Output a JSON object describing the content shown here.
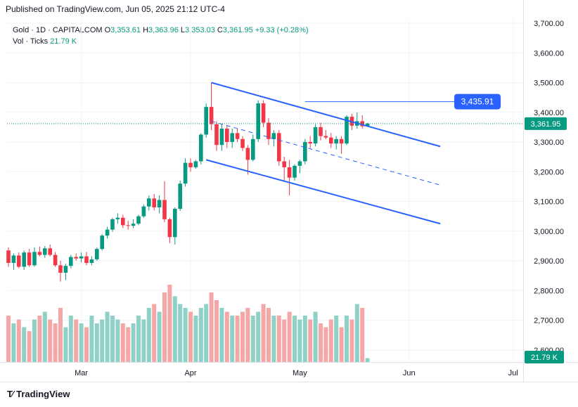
{
  "header": {
    "published": "Published on TradingView.com, Jun 05, 2025 21:12 UTC-4"
  },
  "legend": {
    "symbol": "Gold · 1D · CAPITALCOM",
    "o_label": "O",
    "o": "3,353.61",
    "h_label": "H",
    "h": "3,363.96",
    "l_label": "L",
    "l": "3,353.03",
    "c_label": "C",
    "c": "3,361.95",
    "change": "+9.33 (+0.28%)",
    "vol_label": "Vol · Ticks",
    "vol": "21.79 K"
  },
  "badges": {
    "target": "3,435.91",
    "last_price": "3,361.95",
    "volume": "21.79 K"
  },
  "footer": {
    "brand": "TradingView"
  },
  "colors": {
    "up": "#089981",
    "down": "#f23645",
    "vol_up": "#8fd1c6",
    "vol_down": "#f5a6a6",
    "line": "#2962ff",
    "grid": "#f0f3fa"
  },
  "chart_data": {
    "type": "candlestick",
    "title": "Gold · 1D · CAPITALCOM",
    "y_ticks": [
      "3,700.00",
      "3,600.00",
      "3,500.00",
      "3,400.00",
      "3,300.00",
      "3,200.00",
      "3,100.00",
      "3,000.00",
      "2,900.00",
      "2,800.00",
      "2,700.00",
      "2,600.00"
    ],
    "y_tick_values": [
      3700,
      3600,
      3500,
      3400,
      3300,
      3200,
      3100,
      3000,
      2900,
      2800,
      2700,
      2600
    ],
    "x_ticks": [
      {
        "label": "Mar",
        "index": 14
      },
      {
        "label": "Apr",
        "index": 35
      },
      {
        "label": "May",
        "index": 56
      },
      {
        "label": "Jun",
        "index": 77
      },
      {
        "label": "Jul",
        "index": 97
      }
    ],
    "ylim": [
      2560,
      3740
    ],
    "candles": [
      [
        2935,
        2945,
        2880,
        2893,
        12
      ],
      [
        2893,
        2925,
        2870,
        2918,
        10
      ],
      [
        2918,
        2928,
        2875,
        2880,
        11
      ],
      [
        2880,
        2935,
        2870,
        2928,
        9
      ],
      [
        2928,
        2940,
        2880,
        2885,
        8
      ],
      [
        2885,
        2945,
        2880,
        2930,
        11
      ],
      [
        2930,
        2948,
        2915,
        2920,
        12
      ],
      [
        2920,
        2950,
        2910,
        2942,
        13
      ],
      [
        2942,
        2955,
        2915,
        2920,
        11
      ],
      [
        2920,
        2930,
        2880,
        2885,
        10
      ],
      [
        2885,
        2900,
        2830,
        2860,
        14
      ],
      [
        2860,
        2890,
        2835,
        2883,
        9
      ],
      [
        2883,
        2920,
        2875,
        2913,
        12
      ],
      [
        2913,
        2925,
        2900,
        2908,
        11
      ],
      [
        2908,
        2928,
        2895,
        2915,
        10
      ],
      [
        2915,
        2930,
        2885,
        2893,
        9
      ],
      [
        2893,
        2915,
        2885,
        2905,
        12
      ],
      [
        2905,
        2945,
        2900,
        2940,
        10
      ],
      [
        2940,
        2990,
        2935,
        2985,
        11
      ],
      [
        2985,
        3015,
        2975,
        3005,
        13
      ],
      [
        3005,
        3045,
        2998,
        3040,
        12
      ],
      [
        3040,
        3060,
        3025,
        3045,
        11
      ],
      [
        3045,
        3055,
        3010,
        3020,
        10
      ],
      [
        3020,
        3035,
        3005,
        3018,
        9
      ],
      [
        3018,
        3040,
        3010,
        3025,
        10
      ],
      [
        3025,
        3055,
        3020,
        3050,
        12
      ],
      [
        3050,
        3090,
        3045,
        3083,
        11
      ],
      [
        3083,
        3120,
        3070,
        3110,
        14
      ],
      [
        3110,
        3125,
        3070,
        3080,
        15
      ],
      [
        3080,
        3120,
        3060,
        3105,
        13
      ],
      [
        3105,
        3168,
        3030,
        3040,
        18
      ],
      [
        3040,
        3045,
        2960,
        2980,
        20
      ],
      [
        2980,
        3080,
        2955,
        3075,
        17
      ],
      [
        3075,
        3170,
        3068,
        3160,
        15
      ],
      [
        3160,
        3245,
        3150,
        3230,
        14
      ],
      [
        3230,
        3245,
        3200,
        3215,
        13
      ],
      [
        3215,
        3240,
        3210,
        3235,
        12
      ],
      [
        3235,
        3330,
        3225,
        3325,
        14
      ],
      [
        3325,
        3430,
        3315,
        3418,
        15
      ],
      [
        3418,
        3500,
        3340,
        3360,
        18
      ],
      [
        3360,
        3370,
        3270,
        3290,
        16
      ],
      [
        3290,
        3360,
        3270,
        3345,
        14
      ],
      [
        3345,
        3355,
        3280,
        3300,
        13
      ],
      [
        3300,
        3345,
        3280,
        3330,
        12
      ],
      [
        3330,
        3345,
        3300,
        3310,
        12
      ],
      [
        3310,
        3320,
        3270,
        3280,
        13
      ],
      [
        3280,
        3290,
        3190,
        3240,
        14
      ],
      [
        3240,
        3325,
        3235,
        3310,
        12
      ],
      [
        3310,
        3440,
        3300,
        3430,
        13
      ],
      [
        3430,
        3440,
        3350,
        3365,
        15
      ],
      [
        3365,
        3380,
        3290,
        3310,
        14
      ],
      [
        3310,
        3340,
        3285,
        3330,
        12
      ],
      [
        3330,
        3340,
        3220,
        3235,
        12
      ],
      [
        3235,
        3250,
        3170,
        3215,
        11
      ],
      [
        3215,
        3240,
        3120,
        3180,
        13
      ],
      [
        3180,
        3225,
        3170,
        3220,
        12
      ],
      [
        3220,
        3240,
        3195,
        3235,
        11
      ],
      [
        3235,
        3310,
        3225,
        3300,
        12
      ],
      [
        3300,
        3320,
        3280,
        3295,
        11
      ],
      [
        3295,
        3360,
        3285,
        3350,
        13
      ],
      [
        3350,
        3365,
        3305,
        3320,
        10
      ],
      [
        3320,
        3340,
        3310,
        3315,
        9
      ],
      [
        3315,
        3330,
        3280,
        3295,
        11
      ],
      [
        3295,
        3320,
        3275,
        3310,
        12
      ],
      [
        3310,
        3320,
        3260,
        3295,
        9
      ],
      [
        3295,
        3390,
        3290,
        3385,
        12
      ],
      [
        3385,
        3395,
        3340,
        3355,
        11
      ],
      [
        3355,
        3400,
        3345,
        3370,
        15
      ],
      [
        3370,
        3390,
        3345,
        3353,
        14
      ],
      [
        3353,
        3364,
        3353,
        3362,
        1
      ]
    ]
  }
}
